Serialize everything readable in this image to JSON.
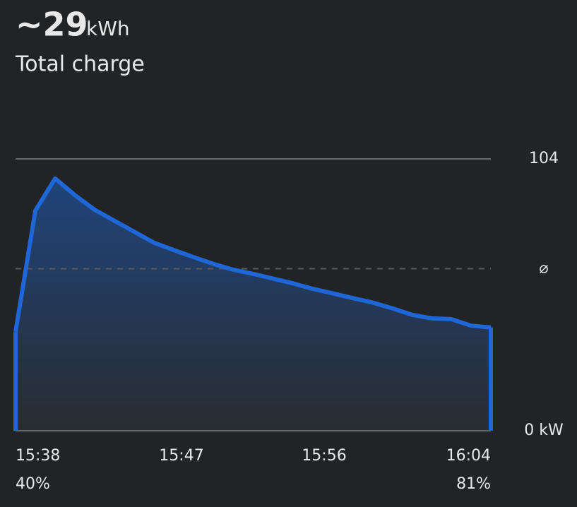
{
  "header": {
    "value": "~29",
    "unit": "kWh",
    "subtitle": "Total charge"
  },
  "chart_data": {
    "type": "area",
    "color": "#1f66d6",
    "values": [
      37.8,
      84.2,
      96.5,
      90.1,
      84.5,
      80.3,
      76.1,
      71.9,
      69.1,
      66.4,
      63.8,
      61.6,
      60.0,
      58.2,
      56.4,
      54.3,
      52.6,
      50.8,
      49.1,
      46.9,
      44.4,
      43.0,
      42.7,
      40.2,
      39.5
    ],
    "ylim": [
      0,
      104
    ],
    "yticks": [
      {
        "value": 0,
        "label": "0 kW"
      },
      {
        "value": 62,
        "label": "⌀"
      },
      104
    ],
    "x_labels": [
      "15:38",
      "15:47",
      "15:56",
      "16:04"
    ],
    "start_label": "40%",
    "end_label": "81%"
  }
}
